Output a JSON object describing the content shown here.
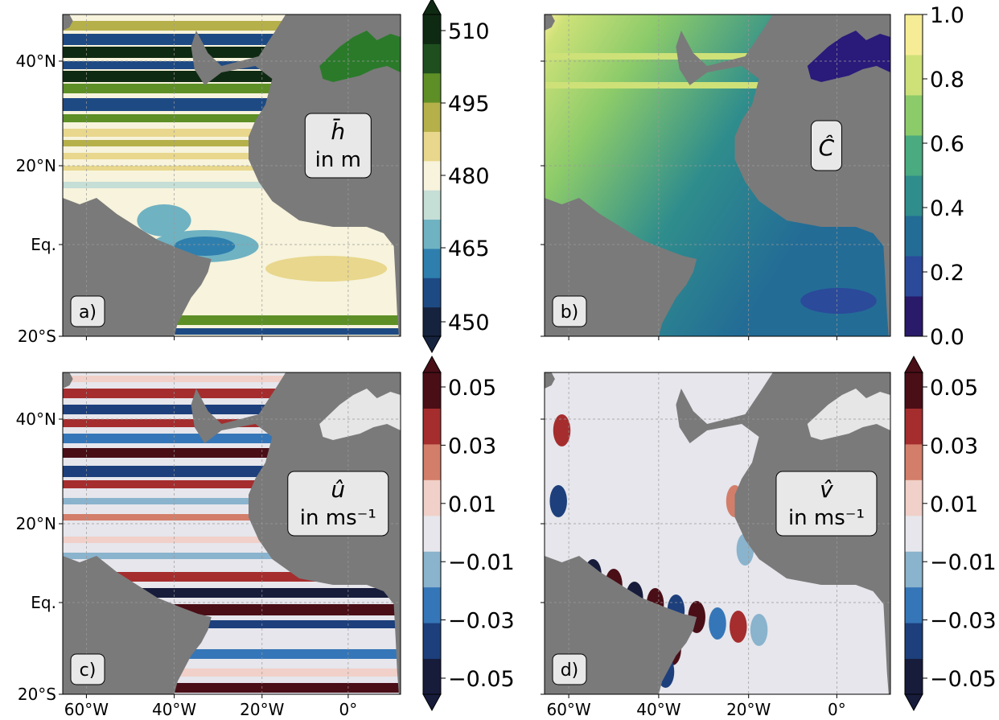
{
  "panels": [
    {
      "id": "a",
      "panel_label": "a)",
      "annotation": [
        "h̄",
        "in m"
      ],
      "colormap": [
        "#16233f",
        "#1e4a84",
        "#2e7fae",
        "#6fb2c2",
        "#c5ded6",
        "#f7f3dc",
        "#e8d78c",
        "#b6b04a",
        "#5d8f26",
        "#1f4f1f",
        "#0f2a12"
      ],
      "land_color": "#7a7a7a",
      "sea_blob_color": "#2a7a2a",
      "colorbar": {
        "ticks": [
          "510",
          "495",
          "480",
          "465",
          "450"
        ],
        "extend": "both"
      }
    },
    {
      "id": "b",
      "panel_label": "b)",
      "annotation": [
        "Ĉ"
      ],
      "colormap": [
        "#2a1a6a",
        "#2b4a9a",
        "#236c96",
        "#2f8d8c",
        "#4aaa80",
        "#8ccb6a",
        "#cde178",
        "#f6ec96"
      ],
      "land_color": "#7a7a7a",
      "sea_blob_color": "#2a1a7a",
      "colorbar": {
        "ticks": [
          "1.0",
          "0.8",
          "0.6",
          "0.4",
          "0.2",
          "0.0"
        ],
        "extend": "neither"
      }
    },
    {
      "id": "c",
      "panel_label": "c)",
      "annotation": [
        "û",
        "in ms⁻¹"
      ],
      "colormap": [
        "#171c3b",
        "#1d3f7c",
        "#3576b8",
        "#8ab3cd",
        "#e6e6ec",
        "#f0d0c8",
        "#d37e6a",
        "#a52d2e",
        "#4a0e17"
      ],
      "land_color": "#7a7a7a",
      "sea_blob_color": "#e6e6e6",
      "colorbar": {
        "ticks": [
          "0.05",
          "0.03",
          "0.01",
          "−0.01",
          "−0.03",
          "−0.05"
        ],
        "extend": "both"
      }
    },
    {
      "id": "d",
      "panel_label": "d)",
      "annotation": [
        "v̂",
        "in ms⁻¹"
      ],
      "colormap": [
        "#171c3b",
        "#1d3f7c",
        "#3576b8",
        "#8ab3cd",
        "#e6e6ec",
        "#f0d0c8",
        "#d37e6a",
        "#a52d2e",
        "#4a0e17"
      ],
      "land_color": "#7a7a7a",
      "sea_blob_color": "#e6e6e6",
      "colorbar": {
        "ticks": [
          "0.05",
          "0.03",
          "0.01",
          "−0.01",
          "−0.03",
          "−0.05"
        ],
        "extend": "both"
      }
    }
  ],
  "y_tick_labels": [
    "40°N",
    "20°N",
    "Eq.",
    "20°S"
  ],
  "x_tick_labels": [
    "60°W",
    "40°W",
    "20°W",
    "0°"
  ]
}
